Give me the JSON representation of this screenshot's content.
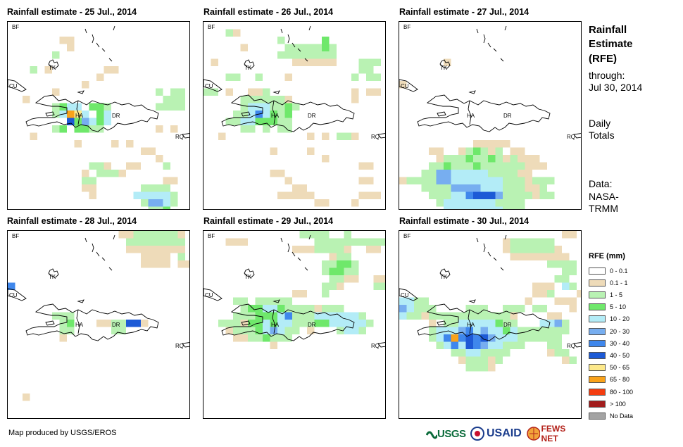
{
  "panels": [
    {
      "title": "Rainfall estimate - 25 Jul., 2014"
    },
    {
      "title": "Rainfall estimate - 26 Jul., 2014"
    },
    {
      "title": "Rainfall estimate - 27 Jul., 2014"
    },
    {
      "title": "Rainfall estimate - 28 Jul., 2014"
    },
    {
      "title": "Rainfall estimate - 29 Jul., 2014"
    },
    {
      "title": "Rainfall estimate - 30 Jul., 2014"
    }
  ],
  "map_labels": {
    "bf": "BF",
    "tk": "TK",
    "cu": "CU",
    "ha": "HA",
    "dr": "DR",
    "rq": "RQ"
  },
  "side": {
    "title1": "Rainfall",
    "title2": "Estimate",
    "title3": "(RFE)",
    "through": "through:",
    "date": "Jul 30, 2014",
    "daily": "Daily",
    "totals": "Totals",
    "data_label": "Data:",
    "data_src1": "NASA-",
    "data_src2": "TRMM"
  },
  "legend": {
    "title": "RFE (mm)",
    "items": [
      {
        "label": "0 - 0.1",
        "color": "#ffffff"
      },
      {
        "label": "0.1 - 1",
        "color": "#eedbb9"
      },
      {
        "label": "1 - 5",
        "color": "#b9f2b3"
      },
      {
        "label": "5 - 10",
        "color": "#6fe86b"
      },
      {
        "label": "10 - 20",
        "color": "#b3ecf7"
      },
      {
        "label": "20 - 30",
        "color": "#77aef0"
      },
      {
        "label": "30 - 40",
        "color": "#3f87ec"
      },
      {
        "label": "40 - 50",
        "color": "#1d5ad6"
      },
      {
        "label": "50 - 65",
        "color": "#fde98b"
      },
      {
        "label": "65 - 80",
        "color": "#f9a21a"
      },
      {
        "label": "80 - 100",
        "color": "#f43d10"
      },
      {
        "label": "> 100",
        "color": "#a21d1d"
      },
      {
        "label": "No Data",
        "color": "#a3a3a3"
      }
    ]
  },
  "footer": "Map produced by USGS/EROS",
  "logos": {
    "usgs": "USGS",
    "usaid": "USAID",
    "fewsnet": "FEWS NET"
  }
}
